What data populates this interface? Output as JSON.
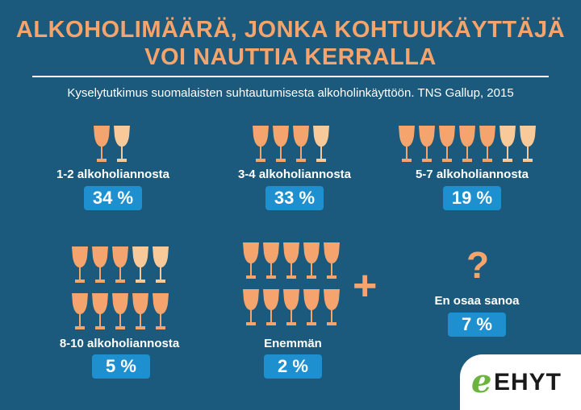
{
  "title_lines": [
    "ALKOHOLIMÄÄRÄ, JONKA KOHTUUKÄYTTÄJÄ",
    "VOI NAUTTIA KERRALLA"
  ],
  "subtitle": "Kyselytutkimus suomalaisten suhtautumisesta alkoholinkäyttöön. TNS Gallup, 2015",
  "colors": {
    "glass_dark": "#f4a46c",
    "glass_light": "#f8c999",
    "badge": "#1e90cf",
    "background": "#1b5a7c"
  },
  "chart_data": {
    "type": "bar",
    "title": "ALKOHOLIMÄÄRÄ, JONKA KOHTUUKÄYTTÄJÄ VOI NAUTTIA KERRALLA",
    "categories": [
      "1-2 alkoholiannosta",
      "3-4 alkoholiannosta",
      "5-7 alkoholiannosta",
      "8-10 alkoholiannosta",
      "Enemmän",
      "En osaa sanoa"
    ],
    "values": [
      34,
      33,
      19,
      5,
      2,
      7
    ],
    "value_labels": [
      "34 %",
      "33 %",
      "19 %",
      "5 %",
      "2 %",
      "7 %"
    ],
    "glass_counts": [
      {
        "dark": 1,
        "light": 1
      },
      {
        "dark": 3,
        "light": 1
      },
      {
        "dark": 5,
        "light": 2
      },
      {
        "dark": 8,
        "light": 2
      },
      {
        "dark": 10,
        "light": 0
      },
      {
        "dark": 0,
        "light": 0
      }
    ],
    "unit": "%"
  },
  "more_symbol": "+",
  "unknown_symbol": "?",
  "logo": {
    "mark": "e",
    "text": "EHYT"
  }
}
